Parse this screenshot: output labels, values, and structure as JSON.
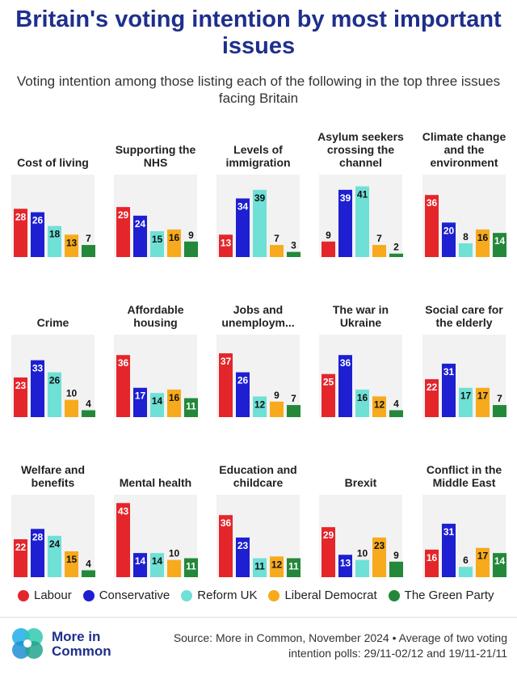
{
  "title": "Britain's voting intention by most important issues",
  "subtitle": "Voting intention among those listing each of the following in the top three issues facing Britain",
  "colors": {
    "Labour": "#e4262b",
    "Conservative": "#1d1fd1",
    "Reform UK": "#6fe0d6",
    "Liberal Democrat": "#f7aa1c",
    "The Green Party": "#23883a",
    "panel_bg": "#f2f2f2"
  },
  "legend": [
    "Labour",
    "Conservative",
    "Reform UK",
    "Liberal Democrat",
    "The Green Party"
  ],
  "brand": "More in Common",
  "source": "Source: More in Common, November 2024 • Average of two voting intention polls: 29/11-02/12 and 19/11-21/11",
  "chart_data": {
    "type": "bar",
    "ylim": [
      0,
      45
    ],
    "series_names": [
      "Labour",
      "Conservative",
      "Reform UK",
      "Liberal Democrat",
      "The Green Party"
    ],
    "panels": [
      {
        "title": "Cost of living",
        "values": [
          28,
          26,
          18,
          13,
          7
        ]
      },
      {
        "title": "Supporting the NHS",
        "values": [
          29,
          24,
          15,
          16,
          9
        ]
      },
      {
        "title": "Levels of immigration",
        "values": [
          13,
          34,
          39,
          7,
          3
        ]
      },
      {
        "title": "Asylum seekers crossing the channel",
        "values": [
          9,
          39,
          41,
          7,
          2
        ]
      },
      {
        "title": "Climate change and the environment",
        "values": [
          36,
          20,
          8,
          16,
          14
        ]
      },
      {
        "title": "Crime",
        "values": [
          23,
          33,
          26,
          10,
          4
        ]
      },
      {
        "title": "Affordable housing",
        "values": [
          36,
          17,
          14,
          16,
          11
        ]
      },
      {
        "title": "Jobs and unemploym...",
        "values": [
          37,
          26,
          12,
          9,
          7
        ]
      },
      {
        "title": "The war in Ukraine",
        "values": [
          25,
          36,
          16,
          12,
          4
        ]
      },
      {
        "title": "Social care for the elderly",
        "values": [
          22,
          31,
          17,
          17,
          7
        ]
      },
      {
        "title": "Welfare and benefits",
        "values": [
          22,
          28,
          24,
          15,
          4
        ]
      },
      {
        "title": "Mental health",
        "values": [
          43,
          14,
          14,
          10,
          11
        ]
      },
      {
        "title": "Education and childcare",
        "values": [
          36,
          23,
          11,
          12,
          11
        ]
      },
      {
        "title": "Brexit",
        "values": [
          29,
          13,
          10,
          23,
          9
        ]
      },
      {
        "title": "Conflict in the Middle East",
        "values": [
          16,
          31,
          6,
          17,
          14
        ]
      }
    ]
  }
}
